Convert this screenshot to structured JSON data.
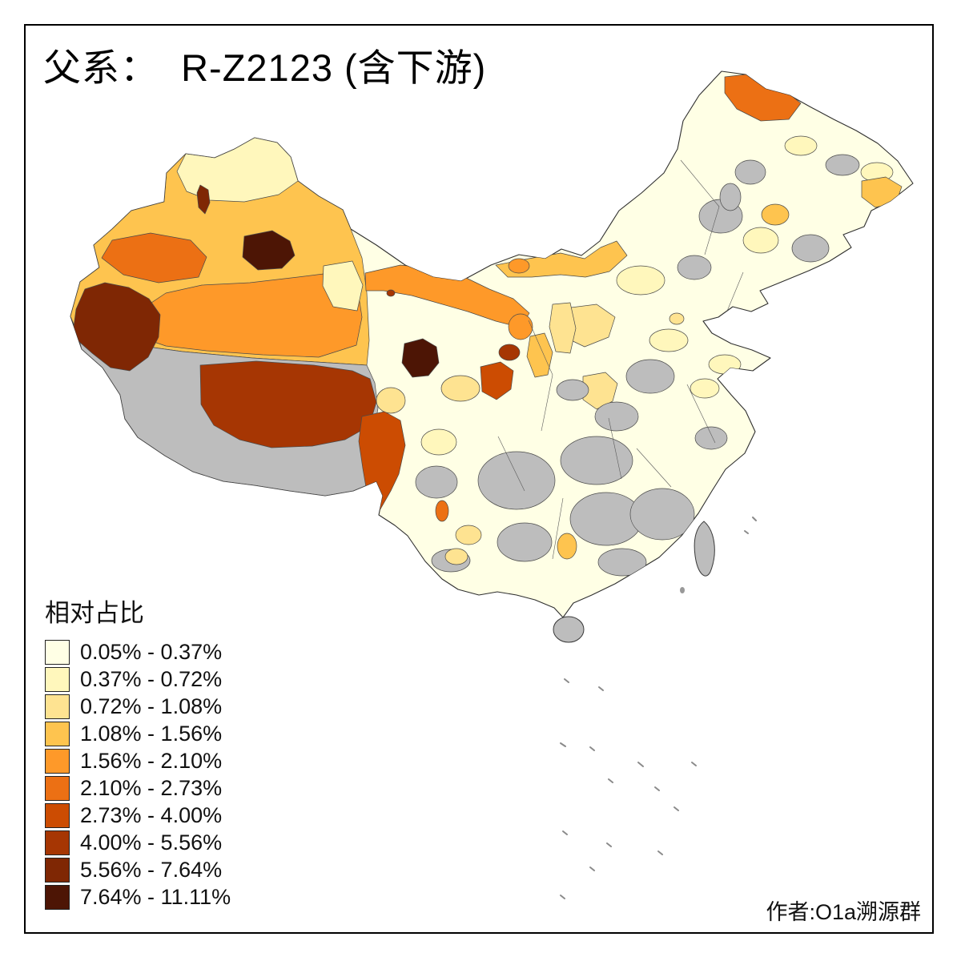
{
  "title": "父系：  R-Z2123 (含下游)",
  "legend": {
    "title": "相对占比",
    "no_data_color": "#BDBDBD",
    "classes": [
      {
        "label": "0.05% - 0.37%",
        "color": "#FFFFE5"
      },
      {
        "label": "0.37% - 0.72%",
        "color": "#FFF7BC"
      },
      {
        "label": "0.72% - 1.08%",
        "color": "#FEE391"
      },
      {
        "label": "1.08% - 1.56%",
        "color": "#FEC44F"
      },
      {
        "label": "1.56% - 2.10%",
        "color": "#FE9929"
      },
      {
        "label": "2.10% - 2.73%",
        "color": "#EC7014"
      },
      {
        "label": "2.73% - 4.00%",
        "color": "#CC4C02"
      },
      {
        "label": "4.00% - 5.56%",
        "color": "#A63603"
      },
      {
        "label": "5.56% - 7.64%",
        "color": "#7F2704"
      },
      {
        "label": "7.64% - 11.11%",
        "color": "#4D1505"
      }
    ]
  },
  "credit": "作者:O1a溯源群"
}
